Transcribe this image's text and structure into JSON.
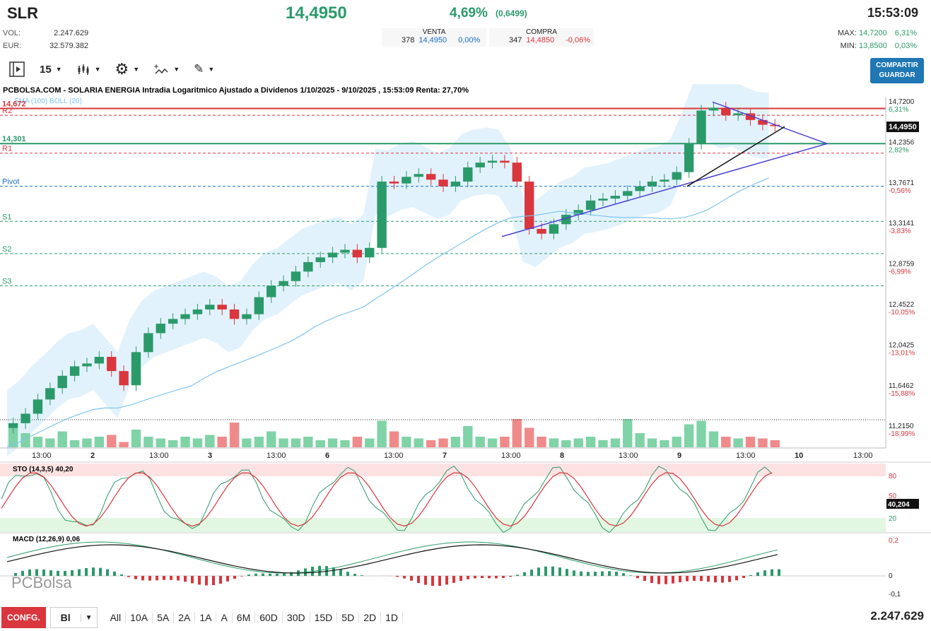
{
  "header": {
    "ticker": "SLR",
    "price": "14,4950",
    "change_pct": "4,69%",
    "change_abs": "(0,6499)",
    "time": "15:53:09",
    "vol_label": "VOL:",
    "vol_value": "2.247.629",
    "eur_label": "EUR:",
    "eur_value": "32.579.382",
    "venta_label": "VENTA",
    "venta_qty": "378",
    "venta_price": "14,4950",
    "venta_pct": "0,00%",
    "compra_label": "COMPRA",
    "compra_qty": "347",
    "compra_price": "14,4850",
    "compra_pct": "-0,06%",
    "max_label": "MAX:",
    "max_value": "14,7200",
    "max_pct": "6,31%",
    "min_label": "MIN:",
    "min_value": "13,8500",
    "min_pct": "0,03%"
  },
  "toolbar": {
    "interval": "15",
    "share_line1": "COMPARTIR",
    "share_line2": "GUARDAR",
    "icons": [
      "play-panel-icon",
      "candles-icon",
      "gear-icon",
      "indicators-icon",
      "pencil-icon"
    ]
  },
  "colors": {
    "green": "#2b9a6a",
    "red": "#d9363e",
    "blue": "#1a6fc9",
    "band": "#d6ecfb",
    "sma": "#7fc4ef"
  },
  "chart_data": {
    "type": "candlestick",
    "title": "PCBOLSA.COM - SOLARIA ENERGIA Intradia Logaritmico Ajustado a Dividenos 1/10/2025 - 9/10/2025 , 15:53:09 Renta: 27,70%",
    "legend": "SMA (100) BOLL (20)",
    "y_ticks": [
      "14,7200",
      "14,2356",
      "13,7671",
      "13,3141",
      "12,8759",
      "12,4522",
      "12,0425",
      "11,6462",
      "11,2150"
    ],
    "y_pct": [
      "6,31%",
      "2,82%",
      "-0,56%",
      "-3,83%",
      "-6,99%",
      "-10,05%",
      "-13,01%",
      "-15,88%",
      "-18,99%"
    ],
    "last_price_tag": "14,4950",
    "x_ticks": [
      "13:00",
      "2",
      "13:00",
      "3",
      "13:00",
      "6",
      "13:00",
      "7",
      "13:00",
      "8",
      "13:00",
      "9",
      "13:00",
      "10",
      "13:00"
    ],
    "levels": [
      {
        "label": "14,672",
        "value": 14.672,
        "color": "#d9363e",
        "style": "solid"
      },
      {
        "label": "R2",
        "value": 14.6,
        "color": "#d9363e",
        "style": "dash"
      },
      {
        "label": "14,301",
        "value": 14.301,
        "color": "#2b9a6a",
        "style": "solid"
      },
      {
        "label": "R1",
        "value": 14.2,
        "color": "#d9363e",
        "style": "dash"
      },
      {
        "label": "Pivot",
        "value": 13.85,
        "color": "#1a6fc9",
        "style": "dash"
      },
      {
        "label": "S1",
        "value": 13.48,
        "color": "#2b9a6a",
        "style": "dash"
      },
      {
        "label": "S2",
        "value": 13.14,
        "color": "#2b9a6a",
        "style": "dash"
      },
      {
        "label": "S3",
        "value": 12.8,
        "color": "#2b9a6a",
        "style": "dash"
      }
    ],
    "close_series": [
      11.35,
      11.45,
      11.6,
      11.72,
      11.85,
      11.95,
      11.98,
      12.05,
      11.9,
      11.75,
      12.1,
      12.3,
      12.4,
      12.45,
      12.5,
      12.55,
      12.6,
      12.55,
      12.45,
      12.5,
      12.68,
      12.8,
      12.85,
      12.95,
      13.05,
      13.1,
      13.15,
      13.18,
      13.1,
      13.2,
      13.9,
      13.88,
      13.95,
      13.98,
      13.92,
      13.85,
      13.9,
      14.05,
      14.1,
      14.12,
      14.1,
      13.9,
      13.4,
      13.35,
      13.45,
      13.55,
      13.6,
      13.7,
      13.72,
      13.75,
      13.8,
      13.85,
      13.9,
      13.92,
      14.0,
      14.3,
      14.65,
      14.68,
      14.6,
      14.62,
      14.55,
      14.5,
      14.49
    ],
    "volume_series": [
      1.2,
      0.8,
      0.6,
      0.5,
      0.9,
      0.4,
      0.5,
      0.6,
      0.7,
      0.3,
      1.0,
      0.6,
      0.5,
      0.4,
      0.6,
      0.5,
      0.7,
      0.6,
      1.4,
      0.5,
      0.6,
      0.9,
      0.5,
      0.5,
      0.6,
      0.4,
      0.5,
      0.4,
      0.6,
      0.5,
      1.5,
      0.9,
      0.6,
      0.5,
      0.4,
      0.5,
      0.6,
      1.2,
      0.6,
      0.5,
      0.6,
      1.6,
      1.1,
      0.6,
      0.5,
      0.4,
      0.5,
      0.6,
      0.4,
      0.5,
      1.6,
      0.8,
      0.5,
      0.4,
      0.6,
      1.3,
      1.5,
      0.9,
      0.6,
      0.5,
      0.6,
      0.5,
      0.4
    ],
    "sto": {
      "label": "STO (14,3,5)",
      "value": "40,20",
      "tag": "40,204",
      "levels": [
        "80",
        "50",
        "20"
      ]
    },
    "macd": {
      "label": "MACD (12,26,9)",
      "value": "0,06",
      "levels": [
        "0,2",
        "0",
        "-0,1"
      ]
    },
    "watermark": "PCBolsa"
  },
  "bottom": {
    "conf": "CONFG.",
    "select": "Bl",
    "periods": [
      "All",
      "10A",
      "5A",
      "2A",
      "1A",
      "A",
      "6M",
      "60D",
      "30D",
      "15D",
      "5D",
      "2D",
      "1D"
    ],
    "volume": "2.247.629"
  }
}
